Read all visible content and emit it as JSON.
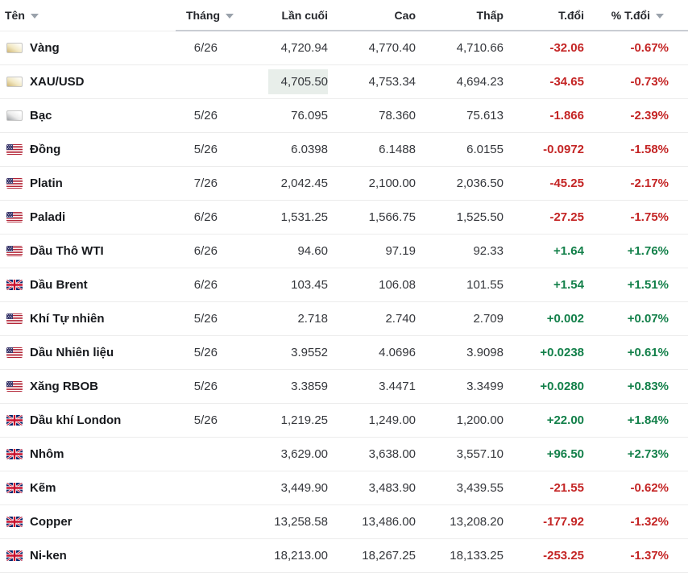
{
  "colors": {
    "positive": "#13804a",
    "negative": "#c42525",
    "highlight": "#e8eeea",
    "header_border": "#c9cdd3",
    "row_border": "#ececec"
  },
  "table": {
    "columns": [
      {
        "key": "name",
        "label": "Tên",
        "sortable": true,
        "align": "left"
      },
      {
        "key": "month",
        "label": "Tháng",
        "sortable": true,
        "align": "right"
      },
      {
        "key": "last",
        "label": "Lần cuối",
        "sortable": false,
        "align": "right"
      },
      {
        "key": "high",
        "label": "Cao",
        "sortable": false,
        "align": "right"
      },
      {
        "key": "low",
        "label": "Thấp",
        "sortable": false,
        "align": "right"
      },
      {
        "key": "change",
        "label": "T.đổi",
        "sortable": false,
        "align": "right"
      },
      {
        "key": "pct",
        "label": "% T.đổi",
        "sortable": true,
        "align": "right"
      }
    ],
    "rows": [
      {
        "icon": "gold-bar",
        "name": "Vàng",
        "month": "6/26",
        "last": "4,720.94",
        "high": "4,770.40",
        "low": "4,710.66",
        "change": "-32.06",
        "pct": "-0.67%",
        "trend": "down",
        "last_highlight": false
      },
      {
        "icon": "gold-bar",
        "name": "XAU/USD",
        "month": "",
        "last": "4,705.50",
        "high": "4,753.34",
        "low": "4,694.23",
        "change": "-34.65",
        "pct": "-0.73%",
        "trend": "down",
        "last_highlight": true
      },
      {
        "icon": "silver-bar",
        "name": "Bạc",
        "month": "5/26",
        "last": "76.095",
        "high": "78.360",
        "low": "75.613",
        "change": "-1.866",
        "pct": "-2.39%",
        "trend": "down",
        "last_highlight": false
      },
      {
        "icon": "us-flag",
        "name": "Đồng",
        "month": "5/26",
        "last": "6.0398",
        "high": "6.1488",
        "low": "6.0155",
        "change": "-0.0972",
        "pct": "-1.58%",
        "trend": "down",
        "last_highlight": false
      },
      {
        "icon": "us-flag",
        "name": "Platin",
        "month": "7/26",
        "last": "2,042.45",
        "high": "2,100.00",
        "low": "2,036.50",
        "change": "-45.25",
        "pct": "-2.17%",
        "trend": "down",
        "last_highlight": false
      },
      {
        "icon": "us-flag",
        "name": "Paladi",
        "month": "6/26",
        "last": "1,531.25",
        "high": "1,566.75",
        "low": "1,525.50",
        "change": "-27.25",
        "pct": "-1.75%",
        "trend": "down",
        "last_highlight": false
      },
      {
        "icon": "us-flag",
        "name": "Dầu Thô WTI",
        "month": "6/26",
        "last": "94.60",
        "high": "97.19",
        "low": "92.33",
        "change": "+1.64",
        "pct": "+1.76%",
        "trend": "up",
        "last_highlight": false
      },
      {
        "icon": "uk-flag",
        "name": "Dầu Brent",
        "month": "6/26",
        "last": "103.45",
        "high": "106.08",
        "low": "101.55",
        "change": "+1.54",
        "pct": "+1.51%",
        "trend": "up",
        "last_highlight": false
      },
      {
        "icon": "us-flag",
        "name": "Khí Tự nhiên",
        "month": "5/26",
        "last": "2.718",
        "high": "2.740",
        "low": "2.709",
        "change": "+0.002",
        "pct": "+0.07%",
        "trend": "up",
        "last_highlight": false
      },
      {
        "icon": "us-flag",
        "name": "Dầu Nhiên liệu",
        "month": "5/26",
        "last": "3.9552",
        "high": "4.0696",
        "low": "3.9098",
        "change": "+0.0238",
        "pct": "+0.61%",
        "trend": "up",
        "last_highlight": false
      },
      {
        "icon": "us-flag",
        "name": "Xăng RBOB",
        "month": "5/26",
        "last": "3.3859",
        "high": "3.4471",
        "low": "3.3499",
        "change": "+0.0280",
        "pct": "+0.83%",
        "trend": "up",
        "last_highlight": false
      },
      {
        "icon": "uk-flag",
        "name": "Dầu khí London",
        "month": "5/26",
        "last": "1,219.25",
        "high": "1,249.00",
        "low": "1,200.00",
        "change": "+22.00",
        "pct": "+1.84%",
        "trend": "up",
        "last_highlight": false
      },
      {
        "icon": "uk-flag",
        "name": "Nhôm",
        "month": "",
        "last": "3,629.00",
        "high": "3,638.00",
        "low": "3,557.10",
        "change": "+96.50",
        "pct": "+2.73%",
        "trend": "up",
        "last_highlight": false
      },
      {
        "icon": "uk-flag",
        "name": "Kẽm",
        "month": "",
        "last": "3,449.90",
        "high": "3,483.90",
        "low": "3,439.55",
        "change": "-21.55",
        "pct": "-0.62%",
        "trend": "down",
        "last_highlight": false
      },
      {
        "icon": "uk-flag",
        "name": "Copper",
        "month": "",
        "last": "13,258.58",
        "high": "13,486.00",
        "low": "13,208.20",
        "change": "-177.92",
        "pct": "-1.32%",
        "trend": "down",
        "last_highlight": false
      },
      {
        "icon": "uk-flag",
        "name": "Ni-ken",
        "month": "",
        "last": "18,213.00",
        "high": "18,267.25",
        "low": "18,133.25",
        "change": "-253.25",
        "pct": "-1.37%",
        "trend": "down",
        "last_highlight": false
      }
    ]
  }
}
